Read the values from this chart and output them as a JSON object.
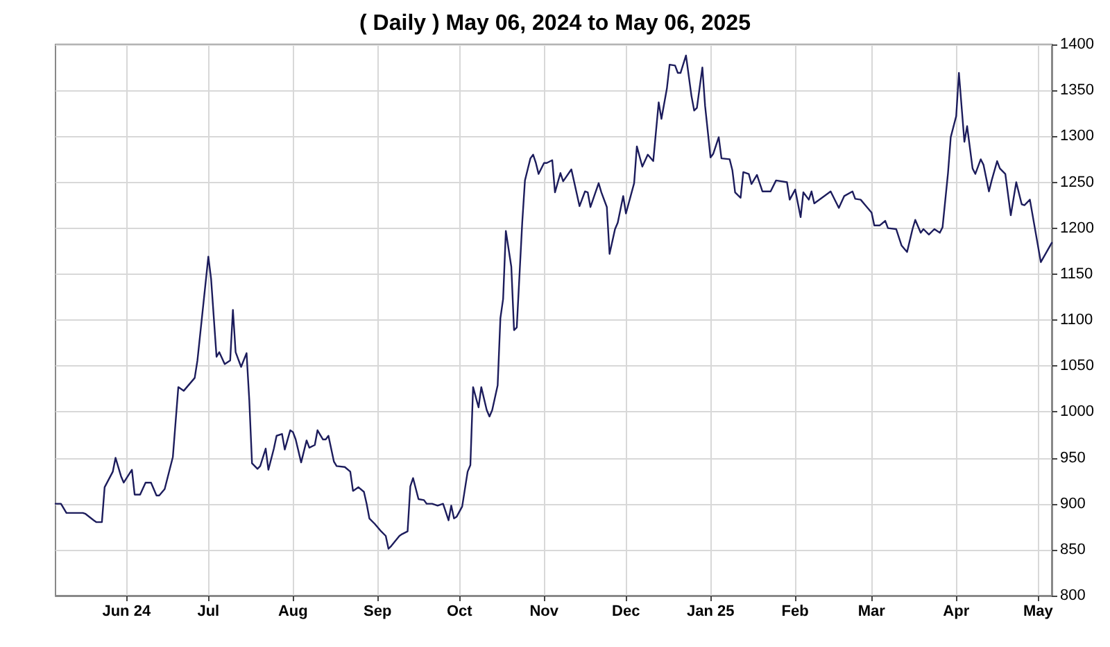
{
  "chart_data": {
    "type": "line",
    "title": "( Daily ) May 06, 2024 to May 06, 2025",
    "x": [
      "2024-05-06",
      "2024-05-08",
      "2024-05-10",
      "2024-05-13",
      "2024-05-16",
      "2024-05-17",
      "2024-05-20",
      "2024-05-21",
      "2024-05-23",
      "2024-05-24",
      "2024-05-27",
      "2024-05-28",
      "2024-05-30",
      "2024-05-31",
      "2024-06-03",
      "2024-06-04",
      "2024-06-06",
      "2024-06-08",
      "2024-06-10",
      "2024-06-12",
      "2024-06-13",
      "2024-06-15",
      "2024-06-18",
      "2024-06-20",
      "2024-06-22",
      "2024-06-26",
      "2024-06-27",
      "2024-07-01",
      "2024-07-02",
      "2024-07-04",
      "2024-07-05",
      "2024-07-07",
      "2024-07-09",
      "2024-07-10",
      "2024-07-11",
      "2024-07-13",
      "2024-07-15",
      "2024-07-16",
      "2024-07-17",
      "2024-07-19",
      "2024-07-20",
      "2024-07-22",
      "2024-07-23",
      "2024-07-25",
      "2024-07-26",
      "2024-07-28",
      "2024-07-29",
      "2024-07-31",
      "2024-08-01",
      "2024-08-02",
      "2024-08-04",
      "2024-08-06",
      "2024-08-07",
      "2024-08-09",
      "2024-08-10",
      "2024-08-12",
      "2024-08-13",
      "2024-08-14",
      "2024-08-16",
      "2024-08-17",
      "2024-08-20",
      "2024-08-22",
      "2024-08-23",
      "2024-08-25",
      "2024-08-27",
      "2024-08-28",
      "2024-08-29",
      "2024-08-31",
      "2024-09-02",
      "2024-09-04",
      "2024-09-05",
      "2024-09-06",
      "2024-09-09",
      "2024-09-10",
      "2024-09-12",
      "2024-09-13",
      "2024-09-14",
      "2024-09-16",
      "2024-09-18",
      "2024-09-19",
      "2024-09-21",
      "2024-09-23",
      "2024-09-25",
      "2024-09-27",
      "2024-09-28",
      "2024-09-29",
      "2024-09-30",
      "2024-10-02",
      "2024-10-04",
      "2024-10-05",
      "2024-10-06",
      "2024-10-08",
      "2024-10-09",
      "2024-10-11",
      "2024-10-12",
      "2024-10-13",
      "2024-10-15",
      "2024-10-16",
      "2024-10-17",
      "2024-10-18",
      "2024-10-20",
      "2024-10-21",
      "2024-10-22",
      "2024-10-24",
      "2024-10-25",
      "2024-10-27",
      "2024-10-28",
      "2024-10-29",
      "2024-10-30",
      "2024-11-01",
      "2024-11-02",
      "2024-11-04",
      "2024-11-05",
      "2024-11-07",
      "2024-11-08",
      "2024-11-11",
      "2024-11-14",
      "2024-11-16",
      "2024-11-17",
      "2024-11-18",
      "2024-11-21",
      "2024-11-22",
      "2024-11-24",
      "2024-11-25",
      "2024-11-27",
      "2024-11-28",
      "2024-11-30",
      "2024-12-01",
      "2024-12-04",
      "2024-12-05",
      "2024-12-07",
      "2024-12-09",
      "2024-12-11",
      "2024-12-13",
      "2024-12-14",
      "2024-12-16",
      "2024-12-17",
      "2024-12-19",
      "2024-12-20",
      "2024-12-21",
      "2024-12-23",
      "2024-12-25",
      "2024-12-26",
      "2024-12-27",
      "2024-12-29",
      "2024-12-30",
      "2025-01-01",
      "2025-01-02",
      "2025-01-04",
      "2025-01-05",
      "2025-01-08",
      "2025-01-09",
      "2025-01-10",
      "2025-01-12",
      "2025-01-13",
      "2025-01-15",
      "2025-01-16",
      "2025-01-18",
      "2025-01-20",
      "2025-01-23",
      "2025-01-25",
      "2025-01-29",
      "2025-01-30",
      "2025-02-01",
      "2025-02-03",
      "2025-02-04",
      "2025-02-06",
      "2025-02-07",
      "2025-02-08",
      "2025-02-14",
      "2025-02-17",
      "2025-02-19",
      "2025-02-22",
      "2025-02-23",
      "2025-02-25",
      "2025-02-27",
      "2025-03-01",
      "2025-03-02",
      "2025-03-04",
      "2025-03-06",
      "2025-03-07",
      "2025-03-10",
      "2025-03-12",
      "2025-03-14",
      "2025-03-16",
      "2025-03-17",
      "2025-03-19",
      "2025-03-20",
      "2025-03-22",
      "2025-03-24",
      "2025-03-26",
      "2025-03-27",
      "2025-03-29",
      "2025-03-30",
      "2025-04-01",
      "2025-04-02",
      "2025-04-04",
      "2025-04-05",
      "2025-04-07",
      "2025-04-08",
      "2025-04-10",
      "2025-04-11",
      "2025-04-13",
      "2025-04-14",
      "2025-04-16",
      "2025-04-17",
      "2025-04-19",
      "2025-04-21",
      "2025-04-23",
      "2025-04-25",
      "2025-04-26",
      "2025-04-28",
      "2025-05-02",
      "2025-05-06"
    ],
    "series": [
      {
        "color": "#1c1c5c",
        "values": [
          900,
          900,
          890,
          890,
          890,
          889,
          882,
          880,
          880,
          918,
          935,
          950,
          930,
          923,
          937,
          910,
          910,
          923,
          923,
          909,
          909,
          916,
          951,
          1027,
          1023,
          1037,
          1056,
          1169,
          1145,
          1060,
          1065,
          1052,
          1056,
          1111,
          1065,
          1049,
          1064,
          1013,
          944,
          938,
          941,
          960,
          937,
          960,
          974,
          976,
          959,
          980,
          978,
          970,
          945,
          969,
          961,
          964,
          980,
          970,
          970,
          974,
          946,
          941,
          940,
          935,
          914,
          918,
          913,
          900,
          884,
          878,
          871,
          865,
          851,
          854,
          865,
          867,
          870,
          919,
          928,
          905,
          904,
          900,
          900,
          898,
          900,
          882,
          898,
          884,
          886,
          897,
          935,
          942,
          1027,
          1005,
          1027,
          1002,
          995,
          1002,
          1029,
          1102,
          1123,
          1197,
          1158,
          1089,
          1092,
          1206,
          1252,
          1276,
          1280,
          1271,
          1259,
          1271,
          1271,
          1274,
          1239,
          1260,
          1251,
          1264,
          1224,
          1240,
          1239,
          1223,
          1249,
          1239,
          1223,
          1172,
          1199,
          1206,
          1235,
          1216,
          1249,
          1289,
          1267,
          1280,
          1273,
          1337,
          1319,
          1352,
          1378,
          1377,
          1369,
          1369,
          1388,
          1344,
          1328,
          1331,
          1375,
          1333,
          1277,
          1281,
          1299,
          1276,
          1275,
          1263,
          1239,
          1233,
          1261,
          1259,
          1248,
          1258,
          1240,
          1240,
          1252,
          1250,
          1231,
          1242,
          1212,
          1239,
          1231,
          1240,
          1227,
          1240,
          1222,
          1235,
          1240,
          1232,
          1231,
          1224,
          1217,
          1203,
          1203,
          1208,
          1200,
          1199,
          1181,
          1174,
          1199,
          1209,
          1195,
          1199,
          1193,
          1199,
          1195,
          1201,
          1260,
          1299,
          1322,
          1369,
          1294,
          1311,
          1265,
          1259,
          1275,
          1269,
          1240,
          1252,
          1273,
          1265,
          1259,
          1214,
          1250,
          1226,
          1225,
          1231,
          1163,
          1184
        ]
      }
    ],
    "xlim": [
      "2024-05-06",
      "2025-05-06"
    ],
    "xticks": [
      {
        "value": "2024-06-01",
        "label": "Jun 24"
      },
      {
        "value": "2024-07-01",
        "label": "Jul"
      },
      {
        "value": "2024-08-01",
        "label": "Aug"
      },
      {
        "value": "2024-09-01",
        "label": "Sep"
      },
      {
        "value": "2024-10-01",
        "label": "Oct"
      },
      {
        "value": "2024-11-01",
        "label": "Nov"
      },
      {
        "value": "2024-12-01",
        "label": "Dec"
      },
      {
        "value": "2025-01-01",
        "label": "Jan 25"
      },
      {
        "value": "2025-02-01",
        "label": "Feb"
      },
      {
        "value": "2025-03-01",
        "label": "Mar"
      },
      {
        "value": "2025-04-01",
        "label": "Apr"
      },
      {
        "value": "2025-05-01",
        "label": "May"
      }
    ],
    "ylim": [
      800,
      1400
    ],
    "yticks": [
      800,
      850,
      900,
      950,
      1000,
      1050,
      1100,
      1150,
      1200,
      1250,
      1300,
      1350,
      1400
    ],
    "grid": true,
    "marker": "none",
    "line_style": "solid"
  }
}
